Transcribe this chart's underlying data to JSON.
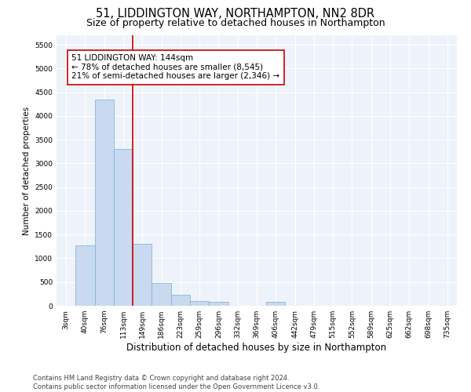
{
  "title1": "51, LIDDINGTON WAY, NORTHAMPTON, NN2 8DR",
  "title2": "Size of property relative to detached houses in Northampton",
  "xlabel": "Distribution of detached houses by size in Northampton",
  "ylabel": "Number of detached properties",
  "categories": [
    "3sqm",
    "40sqm",
    "76sqm",
    "113sqm",
    "149sqm",
    "186sqm",
    "223sqm",
    "259sqm",
    "296sqm",
    "332sqm",
    "369sqm",
    "406sqm",
    "442sqm",
    "479sqm",
    "515sqm",
    "552sqm",
    "589sqm",
    "625sqm",
    "662sqm",
    "698sqm",
    "735sqm"
  ],
  "values": [
    0,
    1275,
    4350,
    3300,
    1300,
    475,
    225,
    100,
    75,
    0,
    0,
    75,
    0,
    0,
    0,
    0,
    0,
    0,
    0,
    0,
    0
  ],
  "bar_color": "#c9d9ef",
  "bar_edge_color": "#7aadd4",
  "vline_color": "#cc0000",
  "annotation_text": "51 LIDDINGTON WAY: 144sqm\n← 78% of detached houses are smaller (8,545)\n21% of semi-detached houses are larger (2,346) →",
  "annotation_box_color": "white",
  "annotation_box_edge_color": "#cc0000",
  "ylim": [
    0,
    5700
  ],
  "yticks": [
    0,
    500,
    1000,
    1500,
    2000,
    2500,
    3000,
    3500,
    4000,
    4500,
    5000,
    5500
  ],
  "background_color": "#eef2fa",
  "grid_color": "white",
  "footer": "Contains HM Land Registry data © Crown copyright and database right 2024.\nContains public sector information licensed under the Open Government Licence v3.0.",
  "title1_fontsize": 10.5,
  "title2_fontsize": 9,
  "xlabel_fontsize": 8.5,
  "ylabel_fontsize": 7.5,
  "tick_fontsize": 6.5,
  "annotation_fontsize": 7.5,
  "footer_fontsize": 6
}
